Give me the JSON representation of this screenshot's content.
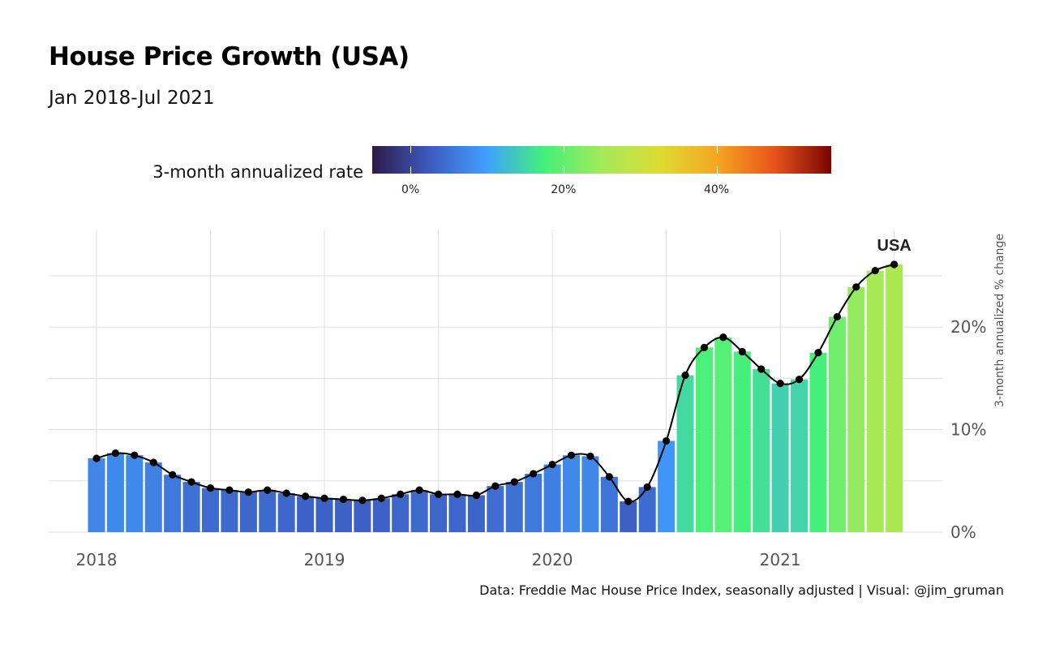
{
  "title": "House Price Growth (USA)",
  "subtitle": "Jan 2018-Jul 2021",
  "caption": "Data: Freddie Mac House Price Index, seasonally adjusted | Visual: @jim_gruman",
  "legend": {
    "title": "3-month annualized rate",
    "tick_labels": [
      "0%",
      "20%",
      "40%"
    ],
    "tick_values": [
      0,
      20,
      40
    ],
    "range": [
      -5,
      55
    ],
    "colors": [
      "#2e1a47",
      "#3e5ac0",
      "#40a0ff",
      "#44f07a",
      "#a3ea5a",
      "#dcdc34",
      "#f5a623",
      "#e8541a",
      "#7a0403"
    ]
  },
  "chart_data": {
    "type": "bar",
    "title": "House Price Growth (USA)",
    "subtitle": "Jan 2018-Jul 2021",
    "ylabel": "3-month annualized % change",
    "xlabel": "",
    "x_tick_labels": [
      "2018",
      "2019",
      "2020",
      "2021"
    ],
    "y_tick_labels": [
      "0%",
      "10%",
      "20%"
    ],
    "y_tick_values": [
      0,
      10,
      20
    ],
    "ylim": [
      0,
      29.5
    ],
    "series_label": "USA",
    "overlay": "line with points",
    "grid": true,
    "legend_position": "top",
    "start": "2018-01",
    "months": [
      "2018-01",
      "2018-02",
      "2018-03",
      "2018-04",
      "2018-05",
      "2018-06",
      "2018-07",
      "2018-08",
      "2018-09",
      "2018-10",
      "2018-11",
      "2018-12",
      "2019-01",
      "2019-02",
      "2019-03",
      "2019-04",
      "2019-05",
      "2019-06",
      "2019-07",
      "2019-08",
      "2019-09",
      "2019-10",
      "2019-11",
      "2019-12",
      "2020-01",
      "2020-02",
      "2020-03",
      "2020-04",
      "2020-05",
      "2020-06",
      "2020-07",
      "2020-08",
      "2020-09",
      "2020-10",
      "2020-11",
      "2020-12",
      "2021-01",
      "2021-02",
      "2021-03",
      "2021-04",
      "2021-05",
      "2021-06",
      "2021-07"
    ],
    "values": [
      7.2,
      7.7,
      7.5,
      6.8,
      5.6,
      4.9,
      4.3,
      4.1,
      3.9,
      4.1,
      3.8,
      3.5,
      3.3,
      3.2,
      3.1,
      3.3,
      3.7,
      4.1,
      3.7,
      3.7,
      3.6,
      4.5,
      4.9,
      5.7,
      6.6,
      7.5,
      7.4,
      5.4,
      3.0,
      4.4,
      8.9,
      15.3,
      18.0,
      19.0,
      17.6,
      15.9,
      14.5,
      14.9,
      17.5,
      21.0,
      23.9,
      25.5,
      26.1
    ]
  }
}
